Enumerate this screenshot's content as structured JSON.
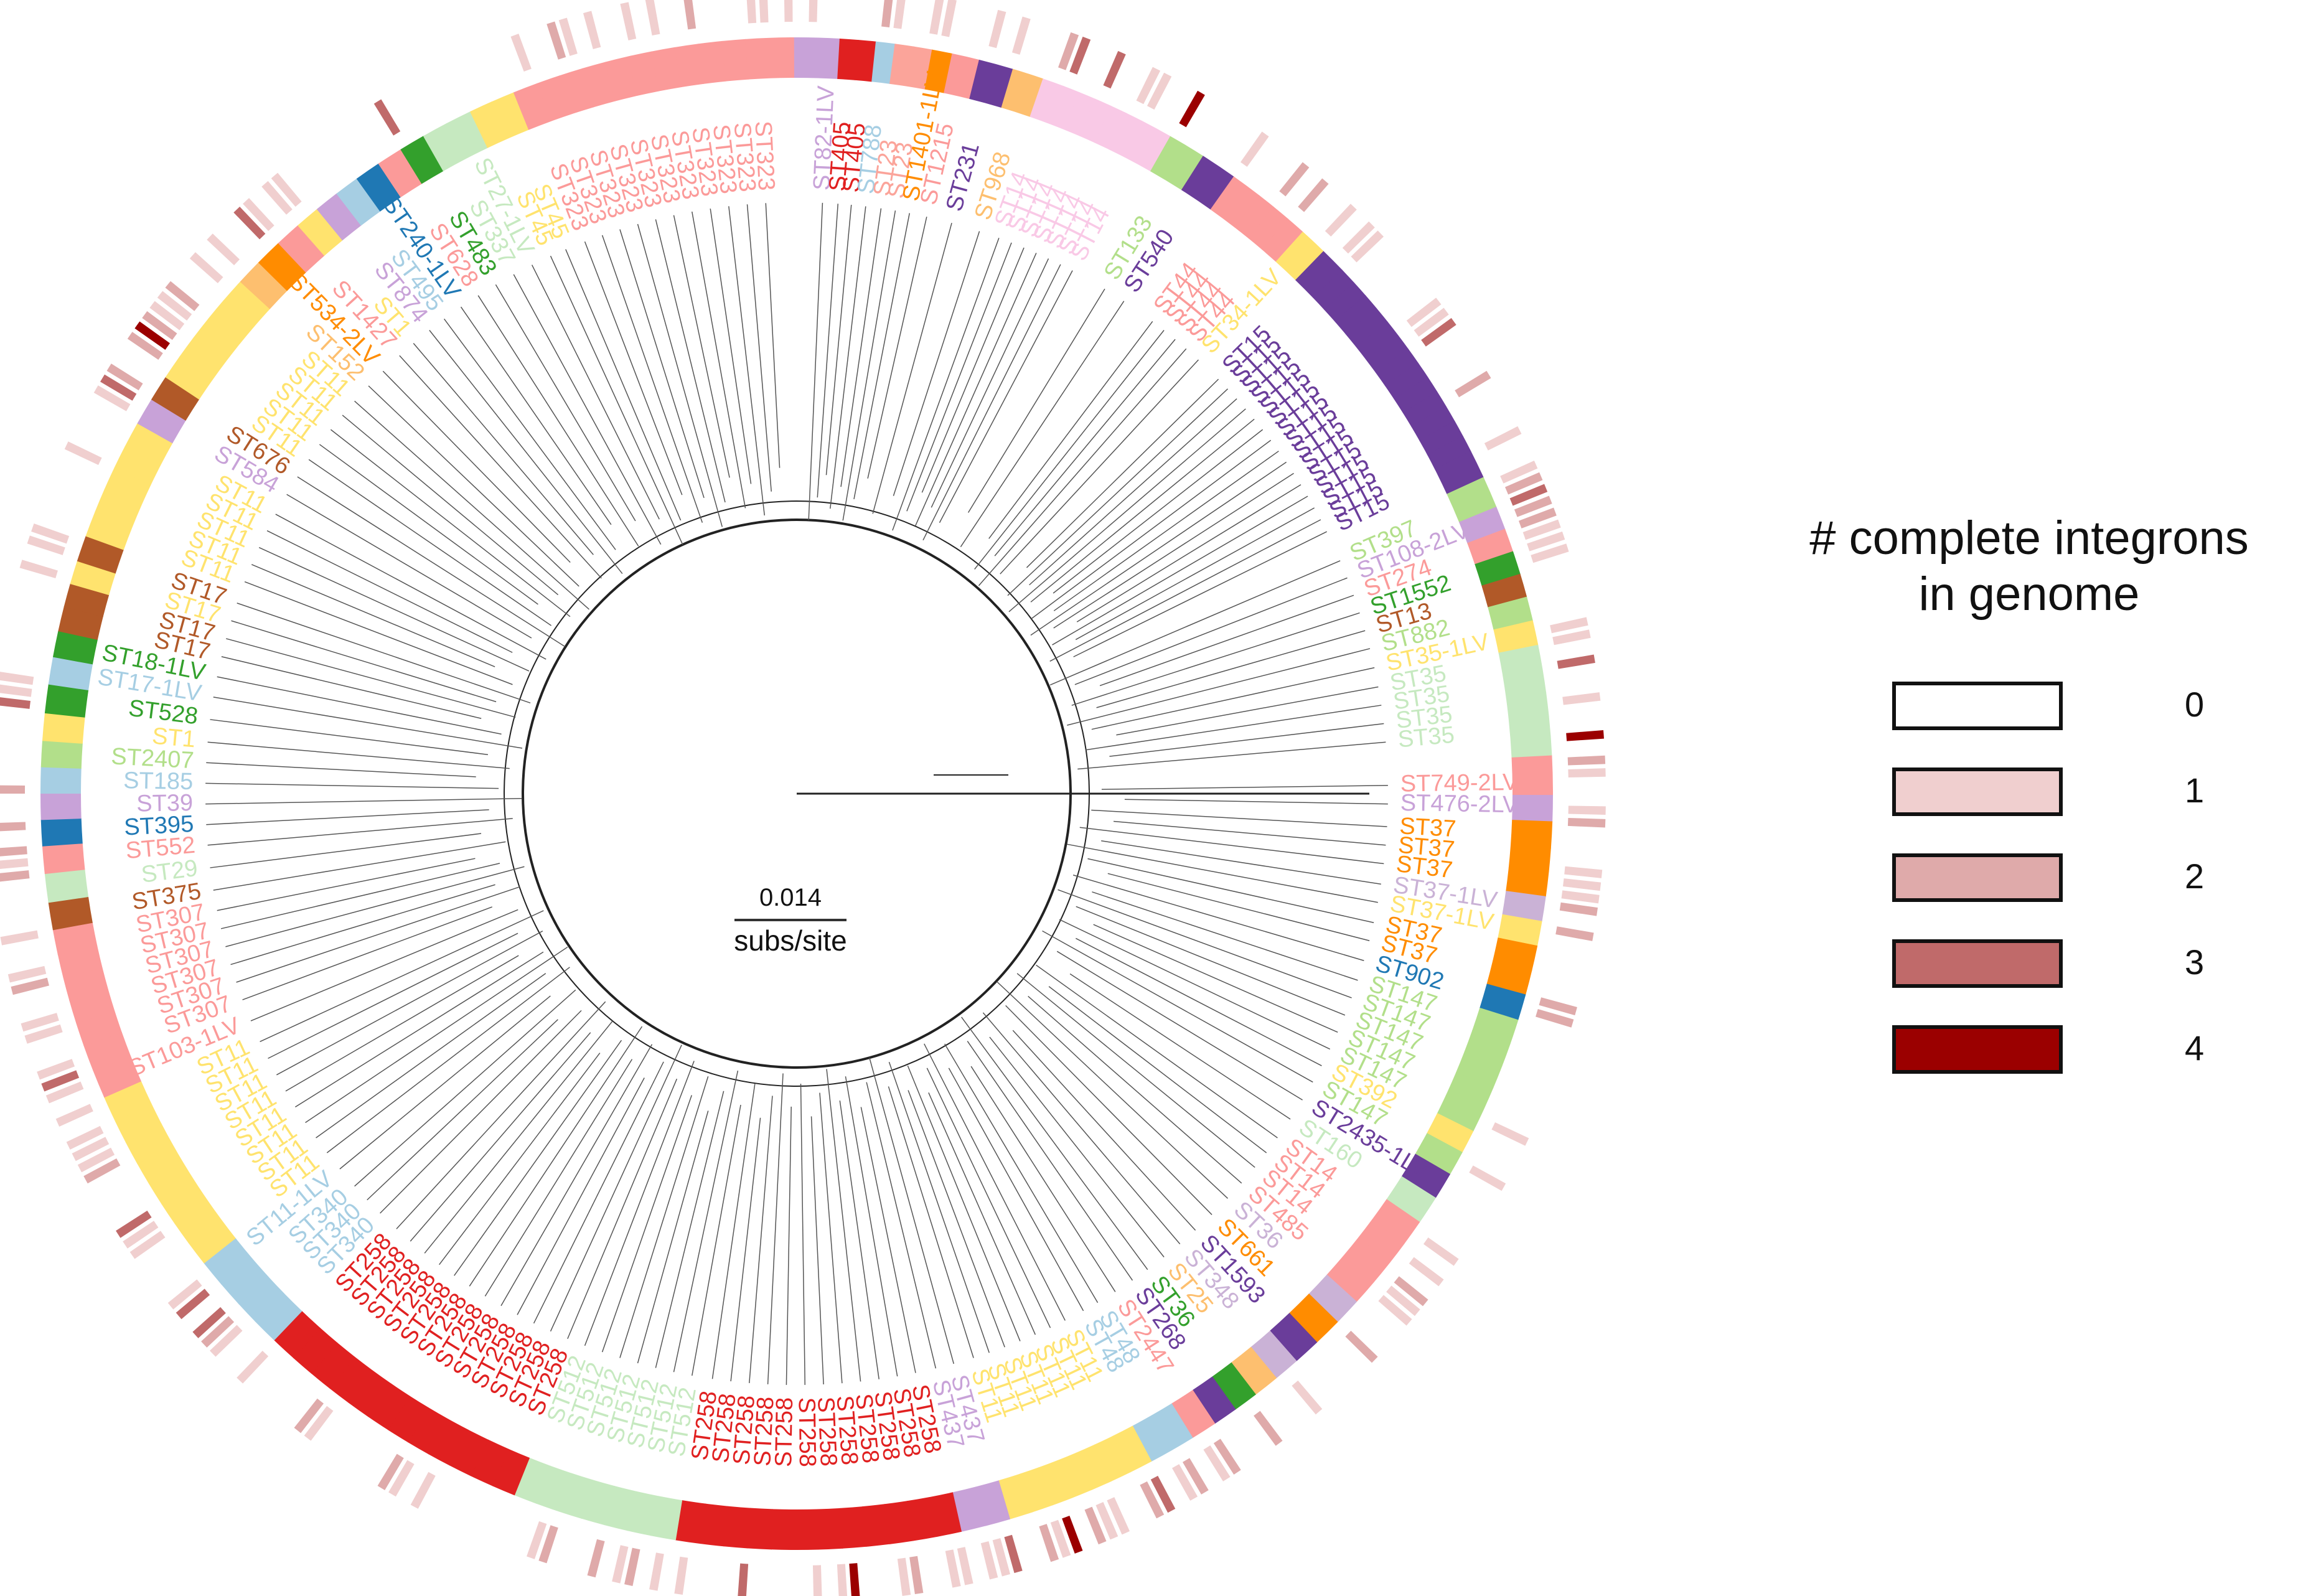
{
  "figure": {
    "scale_bar": {
      "value": "0.014",
      "unit": "subs/site"
    },
    "legend": {
      "title_line1": "# complete integrons",
      "title_line2": "in genome",
      "items": [
        {
          "label": "0",
          "color": "#ffffff"
        },
        {
          "label": "1",
          "color": "#f0cfcf"
        },
        {
          "label": "2",
          "color": "#dfaaaa"
        },
        {
          "label": "3",
          "color": "#c06a6a"
        },
        {
          "label": "4",
          "color": "#9b0000"
        }
      ]
    },
    "st_labels": [
      {
        "text": "ST82-1LV",
        "angle": -87.5,
        "color": "#c8a2d8"
      },
      {
        "text": "ST405",
        "angle": -86.0,
        "color": "#e02020"
      },
      {
        "text": "ST405",
        "angle": -84.7,
        "color": "#e02020"
      },
      {
        "text": "ST788",
        "angle": -83.3,
        "color": "#a6cee3"
      },
      {
        "text": "ST23",
        "angle": -81.8,
        "color": "#fba49a"
      },
      {
        "text": "ST23",
        "angle": -80.4,
        "color": "#fba49a"
      },
      {
        "text": "ST1401-1LV",
        "angle": -79.0,
        "color": "#ff8c00"
      },
      {
        "text": "ST1215",
        "angle": -77.3,
        "color": "#fb9a99"
      },
      {
        "text": "ST231",
        "angle": -74.8,
        "color": "#6a3d9a"
      },
      {
        "text": "ST968",
        "angle": -72.0,
        "color": "#fdbf6f"
      },
      {
        "text": "ST14",
        "angle": -70.0,
        "color": "#f9c9e6"
      },
      {
        "text": "ST14",
        "angle": -68.7,
        "color": "#f9c9e6"
      },
      {
        "text": "ST14",
        "angle": -67.4,
        "color": "#f9c9e6"
      },
      {
        "text": "ST14",
        "angle": -66.1,
        "color": "#f9c9e6"
      },
      {
        "text": "ST14",
        "angle": -64.8,
        "color": "#f9c9e6"
      },
      {
        "text": "ST14",
        "angle": -63.5,
        "color": "#f9c9e6"
      },
      {
        "text": "ST14",
        "angle": -62.2,
        "color": "#f9c9e6"
      },
      {
        "text": "ST133",
        "angle": -58.6,
        "color": "#b2df8a"
      },
      {
        "text": "ST540",
        "angle": -56.4,
        "color": "#6a3d9a"
      },
      {
        "text": "ST44",
        "angle": -53.0,
        "color": "#fb9a99"
      },
      {
        "text": "ST44",
        "angle": -51.6,
        "color": "#fb9a99"
      },
      {
        "text": "ST44",
        "angle": -50.2,
        "color": "#fb9a99"
      },
      {
        "text": "ST44",
        "angle": -48.8,
        "color": "#fb9a99"
      },
      {
        "text": "ST34-1LV",
        "angle": -47.2,
        "color": "#ffe36e"
      },
      {
        "text": "ST15",
        "angle": -44.5,
        "color": "#6a3d9a"
      },
      {
        "text": "ST15",
        "angle": -43.2,
        "color": "#6a3d9a"
      },
      {
        "text": "ST15",
        "angle": -41.9,
        "color": "#6a3d9a"
      },
      {
        "text": "ST15",
        "angle": -40.6,
        "color": "#6a3d9a"
      },
      {
        "text": "ST15",
        "angle": -39.3,
        "color": "#6a3d9a"
      },
      {
        "text": "ST15",
        "angle": -38.0,
        "color": "#6a3d9a"
      },
      {
        "text": "ST15",
        "angle": -36.7,
        "color": "#6a3d9a"
      },
      {
        "text": "ST15",
        "angle": -35.4,
        "color": "#6a3d9a"
      },
      {
        "text": "ST15",
        "angle": -34.1,
        "color": "#6a3d9a"
      },
      {
        "text": "ST15",
        "angle": -32.8,
        "color": "#6a3d9a"
      },
      {
        "text": "ST15",
        "angle": -31.5,
        "color": "#6a3d9a"
      },
      {
        "text": "ST15",
        "angle": -30.2,
        "color": "#6a3d9a"
      },
      {
        "text": "ST15",
        "angle": -28.9,
        "color": "#6a3d9a"
      },
      {
        "text": "ST15",
        "angle": -27.6,
        "color": "#6a3d9a"
      },
      {
        "text": "ST15",
        "angle": -26.3,
        "color": "#6a3d9a"
      },
      {
        "text": "ST397",
        "angle": -23.2,
        "color": "#b2df8a"
      },
      {
        "text": "ST108-2LV",
        "angle": -21.4,
        "color": "#c8a2d8"
      },
      {
        "text": "ST274",
        "angle": -19.6,
        "color": "#fb9a99"
      },
      {
        "text": "ST1552",
        "angle": -17.8,
        "color": "#33a02c"
      },
      {
        "text": "ST13",
        "angle": -16.0,
        "color": "#b15928"
      },
      {
        "text": "ST882",
        "angle": -14.2,
        "color": "#b2df8a"
      },
      {
        "text": "ST35-1LV",
        "angle": -12.3,
        "color": "#ffe36e"
      },
      {
        "text": "ST35",
        "angle": -10.4,
        "color": "#c6e9c0"
      },
      {
        "text": "ST35",
        "angle": -8.6,
        "color": "#c6e9c0"
      },
      {
        "text": "ST35",
        "angle": -6.8,
        "color": "#c6e9c0"
      },
      {
        "text": "ST35",
        "angle": -5.0,
        "color": "#c6e9c0"
      },
      {
        "text": "ST749-2LV",
        "angle": -0.8,
        "color": "#fb9a99"
      },
      {
        "text": "ST476-2LV",
        "angle": 1.0,
        "color": "#c8a2d8"
      },
      {
        "text": "ST37",
        "angle": 3.2,
        "color": "#ff8c00"
      },
      {
        "text": "ST37",
        "angle": 5.0,
        "color": "#ff8c00"
      },
      {
        "text": "ST37",
        "angle": 6.8,
        "color": "#ff8c00"
      },
      {
        "text": "ST37-1LV",
        "angle": 8.8,
        "color": "#cab2d6"
      },
      {
        "text": "ST37-1LV",
        "angle": 10.6,
        "color": "#ffe36e"
      },
      {
        "text": "ST37",
        "angle": 12.6,
        "color": "#ff8c00"
      },
      {
        "text": "ST37",
        "angle": 14.4,
        "color": "#ff8c00"
      },
      {
        "text": "ST902",
        "angle": 16.4,
        "color": "#1f78b4"
      },
      {
        "text": "ST147",
        "angle": 18.4,
        "color": "#b2df8a"
      },
      {
        "text": "ST147",
        "angle": 20.2,
        "color": "#b2df8a"
      },
      {
        "text": "ST147",
        "angle": 22.0,
        "color": "#b2df8a"
      },
      {
        "text": "ST147",
        "angle": 23.8,
        "color": "#b2df8a"
      },
      {
        "text": "ST147",
        "angle": 25.6,
        "color": "#b2df8a"
      },
      {
        "text": "ST392",
        "angle": 27.4,
        "color": "#ffe36e"
      },
      {
        "text": "ST147",
        "angle": 29.2,
        "color": "#b2df8a"
      },
      {
        "text": "ST2435-1LV",
        "angle": 31.2,
        "color": "#6a3d9a"
      },
      {
        "text": "ST160",
        "angle": 33.4,
        "color": "#c6e9c0"
      },
      {
        "text": "ST14",
        "angle": 35.6,
        "color": "#fb9a99"
      },
      {
        "text": "ST14",
        "angle": 37.4,
        "color": "#fb9a99"
      },
      {
        "text": "ST14",
        "angle": 39.2,
        "color": "#fb9a99"
      },
      {
        "text": "ST485",
        "angle": 41.2,
        "color": "#fb9a99"
      },
      {
        "text": "ST36",
        "angle": 43.2,
        "color": "#cab2d6"
      },
      {
        "text": "ST661",
        "angle": 45.4,
        "color": "#ff8c00"
      },
      {
        "text": "ST1593",
        "angle": 47.6,
        "color": "#6a3d9a"
      },
      {
        "text": "ST348",
        "angle": 49.6,
        "color": "#cab2d6"
      },
      {
        "text": "ST25",
        "angle": 51.6,
        "color": "#fdbf6f"
      },
      {
        "text": "ST36",
        "angle": 53.6,
        "color": "#33a02c"
      },
      {
        "text": "ST268",
        "angle": 55.4,
        "color": "#6a3d9a"
      },
      {
        "text": "ST2447",
        "angle": 57.4,
        "color": "#fb9a99"
      },
      {
        "text": "ST48",
        "angle": 59.4,
        "color": "#a6cee3"
      },
      {
        "text": "ST48",
        "angle": 61.0,
        "color": "#a6cee3"
      },
      {
        "text": "ST11",
        "angle": 63.0,
        "color": "#ffe36e"
      },
      {
        "text": "ST11",
        "angle": 64.6,
        "color": "#ffe36e"
      },
      {
        "text": "ST11",
        "angle": 66.2,
        "color": "#ffe36e"
      },
      {
        "text": "ST11",
        "angle": 67.8,
        "color": "#ffe36e"
      },
      {
        "text": "ST11",
        "angle": 69.4,
        "color": "#ffe36e"
      },
      {
        "text": "ST11",
        "angle": 71.0,
        "color": "#ffe36e"
      },
      {
        "text": "ST11",
        "angle": 72.6,
        "color": "#ffe36e"
      },
      {
        "text": "ST437",
        "angle": 74.6,
        "color": "#c8a2d8"
      },
      {
        "text": "ST437",
        "angle": 76.4,
        "color": "#c8a2d8"
      },
      {
        "text": "ST258",
        "angle": 78.4,
        "color": "#e02020"
      },
      {
        "text": "ST258",
        "angle": 80.2,
        "color": "#e02020"
      },
      {
        "text": "ST258",
        "angle": 82.0,
        "color": "#e02020"
      },
      {
        "text": "ST258",
        "angle": 83.8,
        "color": "#e02020"
      },
      {
        "text": "ST258",
        "angle": 85.6,
        "color": "#e02020"
      },
      {
        "text": "ST258",
        "angle": 87.4,
        "color": "#e02020"
      },
      {
        "text": "ST258",
        "angle": 89.2,
        "color": "#e02020"
      },
      {
        "text": "ST258",
        "angle": 91.0,
        "color": "#e02020"
      },
      {
        "text": "ST258",
        "angle": 92.8,
        "color": "#e02020"
      },
      {
        "text": "ST258",
        "angle": 94.6,
        "color": "#e02020"
      },
      {
        "text": "ST258",
        "angle": 96.4,
        "color": "#e02020"
      },
      {
        "text": "ST258",
        "angle": 98.2,
        "color": "#e02020"
      },
      {
        "text": "ST512",
        "angle": 100.2,
        "color": "#c6e9c0"
      },
      {
        "text": "ST512",
        "angle": 102.0,
        "color": "#c6e9c0"
      },
      {
        "text": "ST512",
        "angle": 103.8,
        "color": "#c6e9c0"
      },
      {
        "text": "ST512",
        "angle": 105.6,
        "color": "#c6e9c0"
      },
      {
        "text": "ST512",
        "angle": 107.4,
        "color": "#c6e9c0"
      },
      {
        "text": "ST512",
        "angle": 109.2,
        "color": "#c6e9c0"
      },
      {
        "text": "ST512",
        "angle": 111.0,
        "color": "#c6e9c0"
      },
      {
        "text": "ST258",
        "angle": 112.8,
        "color": "#e02020"
      },
      {
        "text": "ST258",
        "angle": 114.6,
        "color": "#e02020"
      },
      {
        "text": "ST258",
        "angle": 116.4,
        "color": "#e02020"
      },
      {
        "text": "ST258",
        "angle": 118.2,
        "color": "#e02020"
      },
      {
        "text": "ST258",
        "angle": 120.0,
        "color": "#e02020"
      },
      {
        "text": "ST258",
        "angle": 121.8,
        "color": "#e02020"
      },
      {
        "text": "ST258",
        "angle": 123.6,
        "color": "#e02020"
      },
      {
        "text": "ST258",
        "angle": 125.4,
        "color": "#e02020"
      },
      {
        "text": "ST258",
        "angle": 127.2,
        "color": "#e02020"
      },
      {
        "text": "ST258",
        "angle": 129.0,
        "color": "#e02020"
      },
      {
        "text": "ST258",
        "angle": 130.8,
        "color": "#e02020"
      },
      {
        "text": "ST258",
        "angle": 132.6,
        "color": "#e02020"
      },
      {
        "text": "ST340",
        "angle": 134.8,
        "color": "#a6cee3"
      },
      {
        "text": "ST340",
        "angle": 136.6,
        "color": "#a6cee3"
      },
      {
        "text": "ST340",
        "angle": 138.4,
        "color": "#a6cee3"
      },
      {
        "text": "ST11-1LV",
        "angle": 140.6,
        "color": "#a6cee3"
      },
      {
        "text": "ST11",
        "angle": 142.6,
        "color": "#ffe36e"
      },
      {
        "text": "ST11",
        "angle": 144.4,
        "color": "#ffe36e"
      },
      {
        "text": "ST11",
        "angle": 146.2,
        "color": "#ffe36e"
      },
      {
        "text": "ST11",
        "angle": 148.0,
        "color": "#ffe36e"
      },
      {
        "text": "ST11",
        "angle": 149.8,
        "color": "#ffe36e"
      },
      {
        "text": "ST11",
        "angle": 151.6,
        "color": "#ffe36e"
      },
      {
        "text": "ST11",
        "angle": 153.4,
        "color": "#ffe36e"
      },
      {
        "text": "ST11",
        "angle": 155.2,
        "color": "#ffe36e"
      },
      {
        "text": "ST103-1LV",
        "angle": 157.4,
        "color": "#fb9a99"
      },
      {
        "text": "ST307",
        "angle": 159.6,
        "color": "#fb9a99"
      },
      {
        "text": "ST307",
        "angle": 161.4,
        "color": "#fb9a99"
      },
      {
        "text": "ST307",
        "angle": 163.2,
        "color": "#fb9a99"
      },
      {
        "text": "ST307",
        "angle": 165.0,
        "color": "#fb9a99"
      },
      {
        "text": "ST307",
        "angle": 166.8,
        "color": "#fb9a99"
      },
      {
        "text": "ST307",
        "angle": 168.6,
        "color": "#fb9a99"
      },
      {
        "text": "ST375",
        "angle": 170.6,
        "color": "#b15928"
      },
      {
        "text": "ST29",
        "angle": 172.8,
        "color": "#c6e9c0"
      },
      {
        "text": "ST552",
        "angle": 175.0,
        "color": "#fb9a99"
      },
      {
        "text": "ST395",
        "angle": 177.0,
        "color": "#1f78b4"
      },
      {
        "text": "ST39",
        "angle": 179.0,
        "color": "#c8a2d8"
      },
      {
        "text": "ST185",
        "angle": 181.0,
        "color": "#a6cee3"
      },
      {
        "text": "ST2407",
        "angle": 183.0,
        "color": "#b2df8a"
      },
      {
        "text": "ST1",
        "angle": 185.0,
        "color": "#ffe36e"
      },
      {
        "text": "ST528",
        "angle": 187.2,
        "color": "#33a02c"
      },
      {
        "text": "ST17-1LV",
        "angle": 189.4,
        "color": "#a6cee3"
      },
      {
        "text": "ST18-1LV",
        "angle": 191.4,
        "color": "#33a02c"
      },
      {
        "text": "ST17",
        "angle": 193.4,
        "color": "#b15928"
      },
      {
        "text": "ST17",
        "angle": 195.2,
        "color": "#b15928"
      },
      {
        "text": "ST17",
        "angle": 197.0,
        "color": "#ffe36e"
      },
      {
        "text": "ST17",
        "angle": 198.8,
        "color": "#b15928"
      },
      {
        "text": "ST11",
        "angle": 201.0,
        "color": "#ffe36e"
      },
      {
        "text": "ST11",
        "angle": 202.8,
        "color": "#ffe36e"
      },
      {
        "text": "ST11",
        "angle": 204.6,
        "color": "#ffe36e"
      },
      {
        "text": "ST11",
        "angle": 206.4,
        "color": "#ffe36e"
      },
      {
        "text": "ST11",
        "angle": 208.2,
        "color": "#ffe36e"
      },
      {
        "text": "ST584",
        "angle": 210.4,
        "color": "#c8a2d8"
      },
      {
        "text": "ST676",
        "angle": 212.4,
        "color": "#b15928"
      },
      {
        "text": "ST11",
        "angle": 214.4,
        "color": "#ffe36e"
      },
      {
        "text": "ST11",
        "angle": 216.2,
        "color": "#ffe36e"
      },
      {
        "text": "ST11",
        "angle": 218.0,
        "color": "#ffe36e"
      },
      {
        "text": "ST11",
        "angle": 219.8,
        "color": "#ffe36e"
      },
      {
        "text": "ST11",
        "angle": 221.6,
        "color": "#ffe36e"
      },
      {
        "text": "ST152",
        "angle": 223.6,
        "color": "#fdbf6f"
      },
      {
        "text": "ST534-2LV",
        "angle": 225.6,
        "color": "#ff8c00"
      },
      {
        "text": "ST1427",
        "angle": 227.8,
        "color": "#fb9a99"
      },
      {
        "text": "ST1",
        "angle": 229.6,
        "color": "#ffe36e"
      },
      {
        "text": "ST874",
        "angle": 231.6,
        "color": "#c8a2d8"
      },
      {
        "text": "ST495",
        "angle": 233.4,
        "color": "#a6cee3"
      },
      {
        "text": "ST240-1LV",
        "angle": 235.4,
        "color": "#1f78b4"
      },
      {
        "text": "ST628",
        "angle": 237.4,
        "color": "#fb9a99"
      },
      {
        "text": "ST483",
        "angle": 239.4,
        "color": "#33a02c"
      },
      {
        "text": "ST337",
        "angle": 241.4,
        "color": "#c6e9c0"
      },
      {
        "text": "ST27-1LV",
        "angle": 243.4,
        "color": "#c6e9c0"
      },
      {
        "text": "ST45",
        "angle": 245.4,
        "color": "#ffe36e"
      },
      {
        "text": "ST45",
        "angle": 247.0,
        "color": "#ffe36e"
      },
      {
        "text": "ST323",
        "angle": 249.0,
        "color": "#fb9a99"
      },
      {
        "text": "ST323",
        "angle": 250.8,
        "color": "#fb9a99"
      },
      {
        "text": "ST323",
        "angle": 252.6,
        "color": "#fb9a99"
      },
      {
        "text": "ST323",
        "angle": 254.4,
        "color": "#fb9a99"
      },
      {
        "text": "ST323",
        "angle": 256.2,
        "color": "#fb9a99"
      },
      {
        "text": "ST323",
        "angle": 258.0,
        "color": "#fb9a99"
      },
      {
        "text": "ST323",
        "angle": 259.8,
        "color": "#fb9a99"
      },
      {
        "text": "ST323",
        "angle": 261.6,
        "color": "#fb9a99"
      },
      {
        "text": "ST323",
        "angle": 263.4,
        "color": "#fb9a99"
      },
      {
        "text": "ST323",
        "angle": 265.2,
        "color": "#fb9a99"
      },
      {
        "text": "ST323",
        "angle": 267.0,
        "color": "#fb9a99"
      }
    ]
  }
}
